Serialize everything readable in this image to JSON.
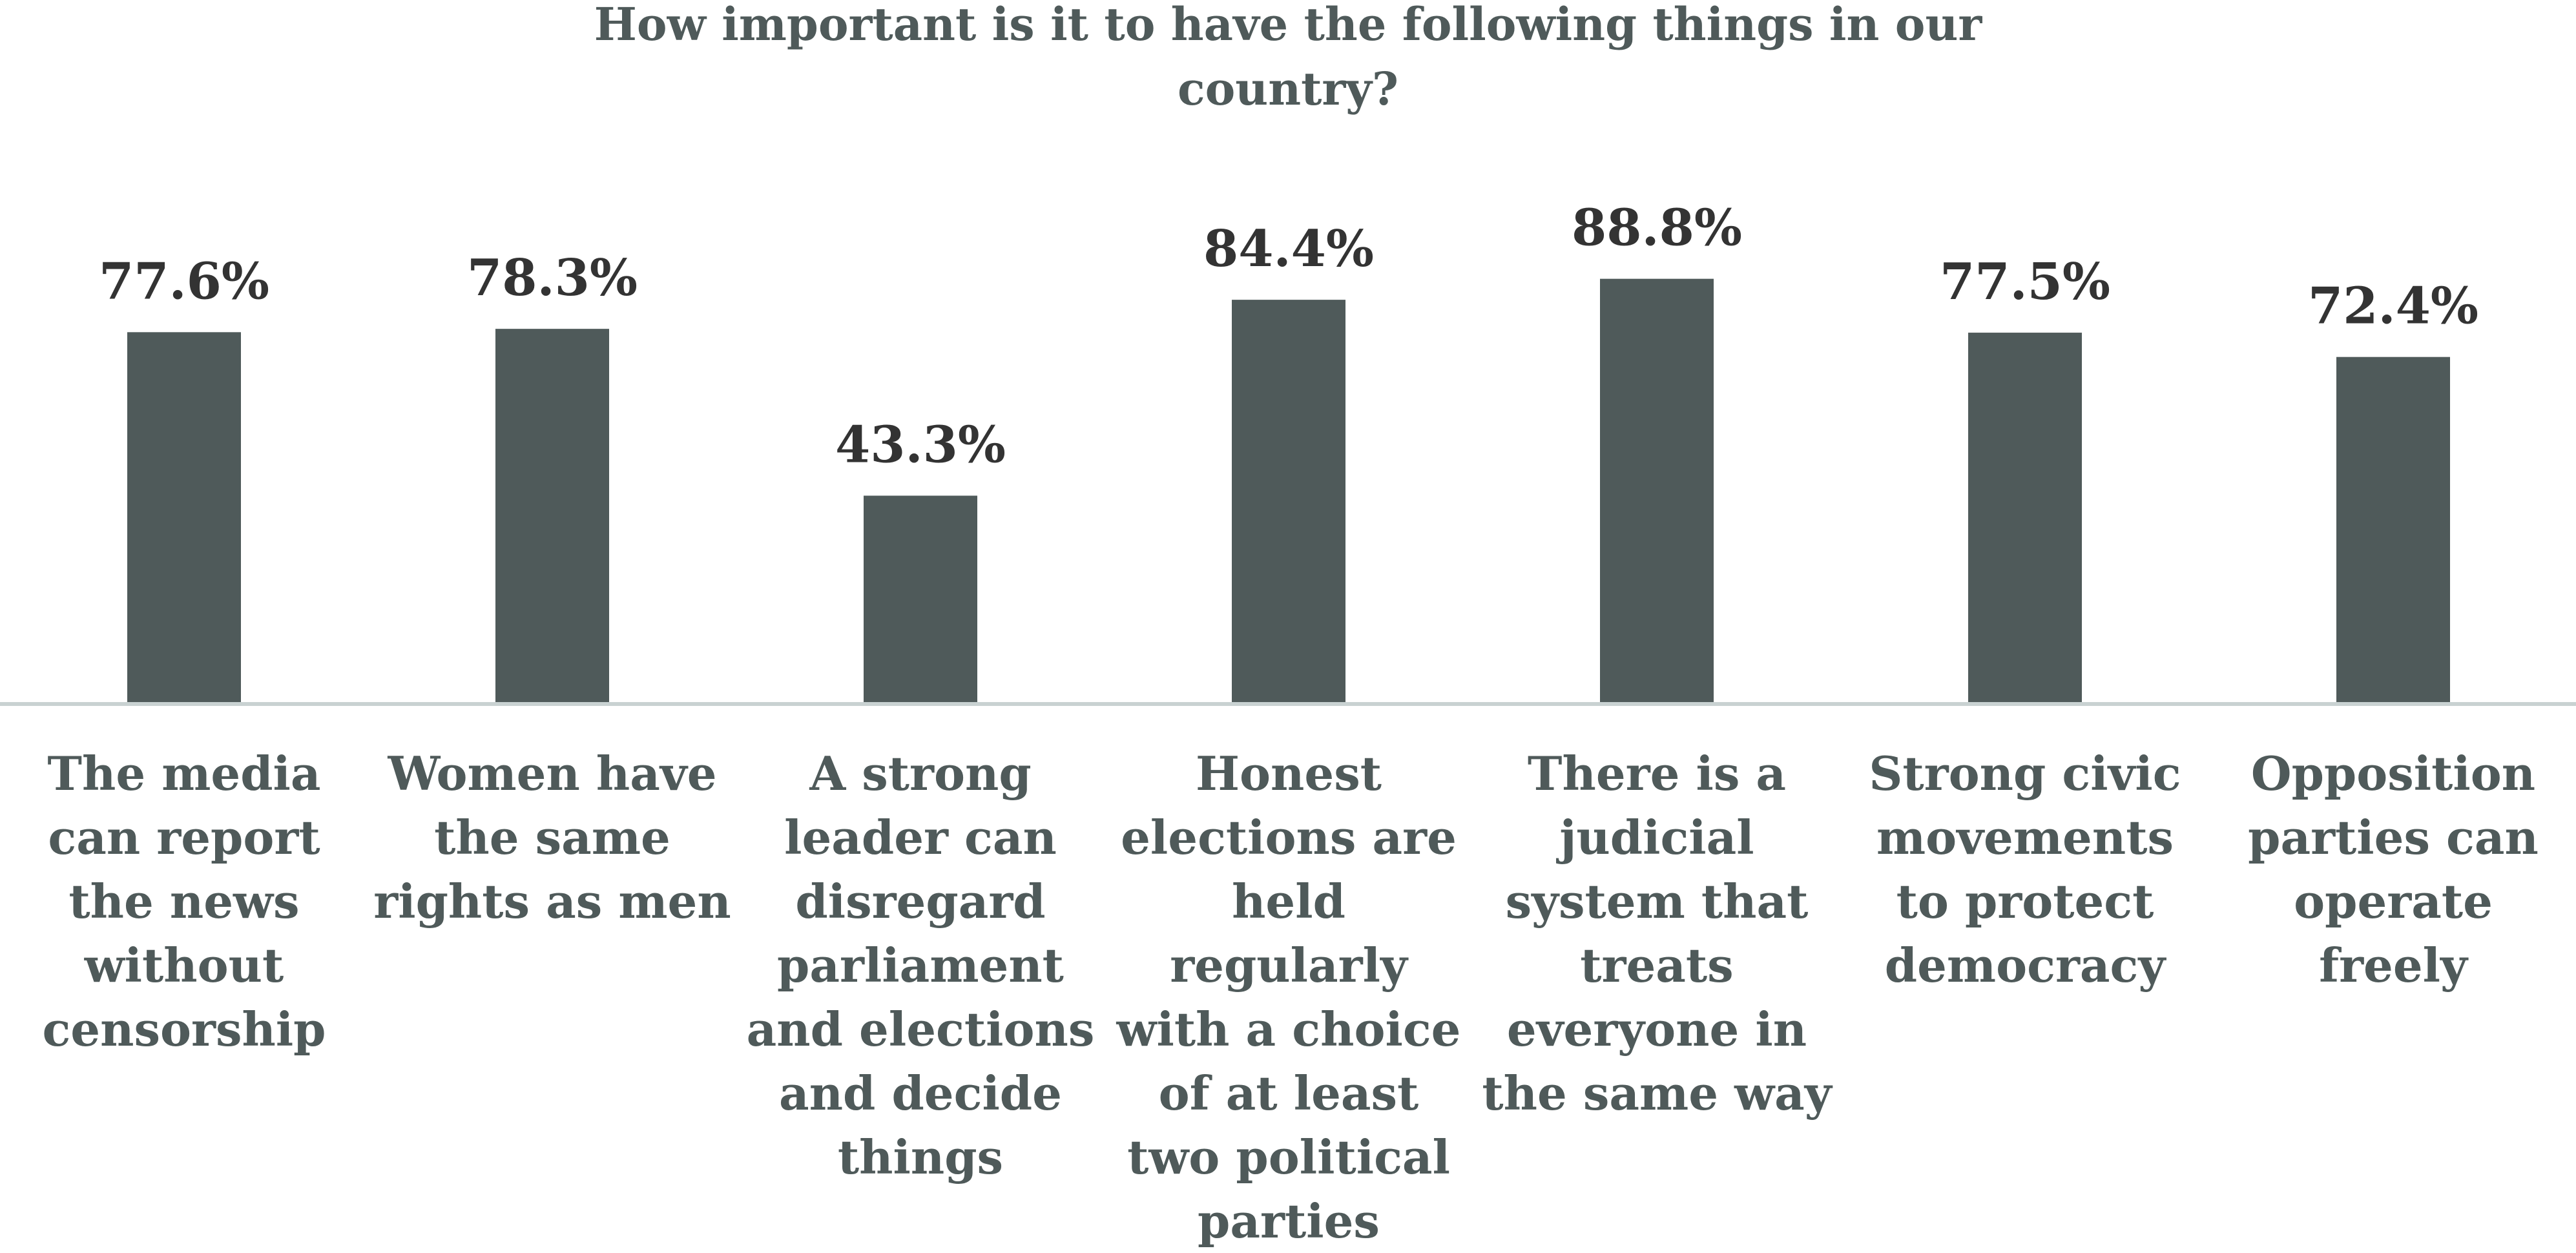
{
  "chart_data": {
    "type": "bar",
    "title": "How important is it to have the following things in our country?",
    "xlabel": "",
    "ylabel": "",
    "categories": [
      "The media can report the news without censorship",
      "Women have the same rights as men",
      "A strong leader can disregard parliament and elections and decide things",
      "Honest elections are held regularly with a choice of at least two political parties",
      "There is a judicial system that treats everyone in the same way",
      "Strong civic movements to protect democracy",
      "Opposition parties can operate freely"
    ],
    "values": [
      77.6,
      78.3,
      43.3,
      84.4,
      88.8,
      77.5,
      72.4
    ],
    "data_labels": [
      "77.6%",
      "78.3%",
      "43.3%",
      "84.4%",
      "88.8%",
      "77.5%",
      "72.4%"
    ],
    "ylim": [
      0,
      100
    ],
    "grid": false,
    "legend": "none",
    "bar_color": "#4f5a5a",
    "axis_color": "#c9d2d2"
  }
}
